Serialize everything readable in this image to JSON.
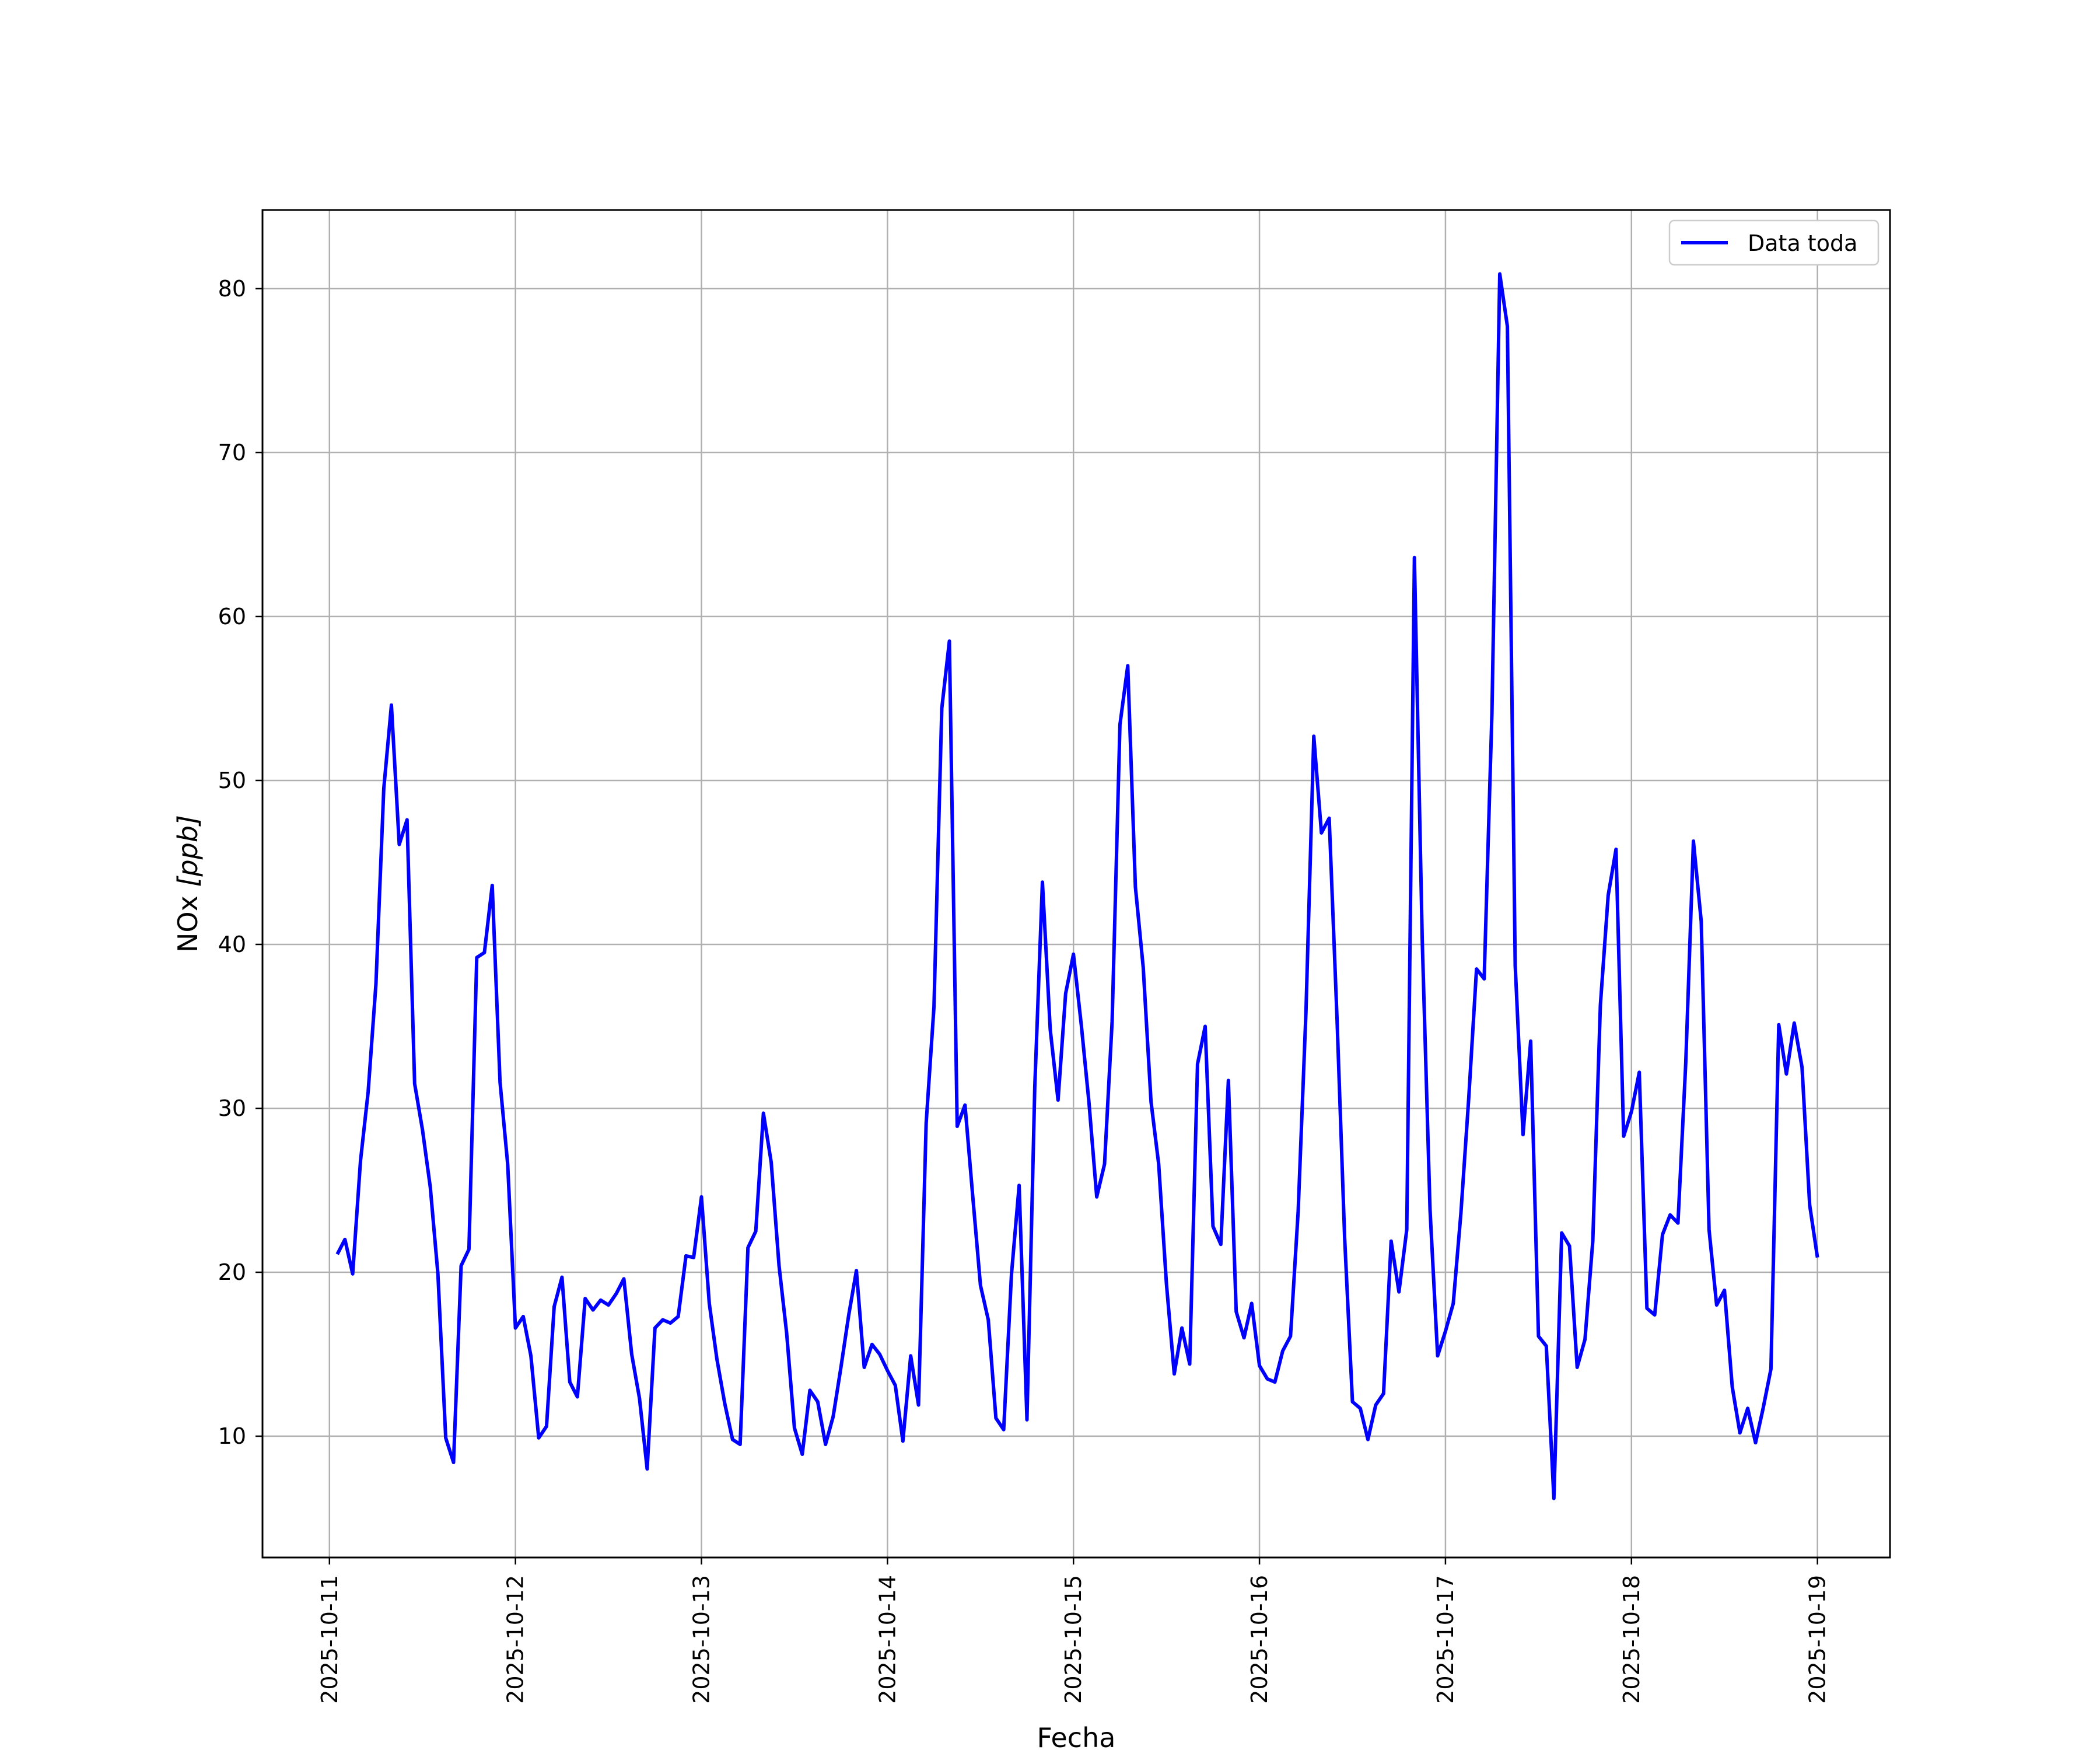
{
  "chart_data": {
    "type": "line",
    "xlabel": "Fecha",
    "ylabel_main": "NOx ",
    "ylabel_unit": "[ppb]",
    "ylabel_unit_italic": "ppb",
    "x_tick_labels": [
      "2025-10-11",
      "2025-10-12",
      "2025-10-13",
      "2025-10-14",
      "2025-10-15",
      "2025-10-16",
      "2025-10-17",
      "2025-10-18",
      "2025-10-19"
    ],
    "y_ticks": [
      10,
      20,
      30,
      40,
      50,
      60,
      70,
      80
    ],
    "xlim_days": [
      -0.36,
      8.39
    ],
    "ylim": [
      2.6,
      84.8
    ],
    "x_start_date": "2025-10-11",
    "grid": true,
    "legend_position": "upper right",
    "series": [
      {
        "name": "Data toda",
        "color": "#0000ff",
        "x_days": [
          0.042,
          0.083,
          0.125,
          0.167,
          0.208,
          0.25,
          0.292,
          0.333,
          0.375,
          0.417,
          0.458,
          0.5,
          0.542,
          0.583,
          0.625,
          0.667,
          0.708,
          0.75,
          0.792,
          0.833,
          0.875,
          0.917,
          0.958,
          1.0,
          1.042,
          1.083,
          1.125,
          1.167,
          1.208,
          1.25,
          1.292,
          1.333,
          1.375,
          1.417,
          1.458,
          1.5,
          1.542,
          1.583,
          1.625,
          1.667,
          1.708,
          1.75,
          1.792,
          1.833,
          1.875,
          1.917,
          1.958,
          2.0,
          2.042,
          2.083,
          2.125,
          2.167,
          2.208,
          2.25,
          2.292,
          2.333,
          2.375,
          2.417,
          2.458,
          2.5,
          2.542,
          2.583,
          2.625,
          2.667,
          2.708,
          2.75,
          2.792,
          2.833,
          2.875,
          2.917,
          2.958,
          3.0,
          3.042,
          3.083,
          3.125,
          3.167,
          3.208,
          3.25,
          3.292,
          3.333,
          3.375,
          3.417,
          3.458,
          3.5,
          3.542,
          3.583,
          3.625,
          3.667,
          3.708,
          3.75,
          3.792,
          3.833,
          3.875,
          3.917,
          3.958,
          4.0,
          4.042,
          4.083,
          4.125,
          4.167,
          4.208,
          4.25,
          4.292,
          4.333,
          4.375,
          4.417,
          4.458,
          4.5,
          4.542,
          4.583,
          4.625,
          4.667,
          4.708,
          4.75,
          4.792,
          4.833,
          4.875,
          4.917,
          4.958,
          5.0,
          5.042,
          5.083,
          5.125,
          5.167,
          5.208,
          5.25,
          5.292,
          5.333,
          5.375,
          5.417,
          5.458,
          5.5,
          5.542,
          5.583,
          5.625,
          5.667,
          5.708,
          5.75,
          5.792,
          5.833,
          5.875,
          5.917,
          5.958,
          6.0,
          6.042,
          6.083,
          6.125,
          6.167,
          6.208,
          6.25,
          6.292,
          6.333,
          6.375,
          6.417,
          6.458,
          6.5,
          6.542,
          6.583,
          6.625,
          6.667,
          6.708,
          6.75,
          6.792,
          6.833,
          6.875,
          6.917,
          6.958,
          7.0,
          7.042,
          7.083,
          7.125,
          7.167,
          7.208,
          7.25,
          7.292,
          7.333,
          7.375,
          7.417,
          7.458,
          7.5,
          7.542,
          7.583,
          7.625,
          7.667,
          7.708,
          7.75,
          7.792,
          7.833,
          7.875,
          7.917,
          7.958,
          8.0
        ],
        "y": [
          21.1,
          22.0,
          19.9,
          26.8,
          31.0,
          37.6,
          49.5,
          54.6,
          46.1,
          47.6,
          31.5,
          28.7,
          25.2,
          19.9,
          9.9,
          8.4,
          20.4,
          21.4,
          39.2,
          39.5,
          43.6,
          31.6,
          26.6,
          16.6,
          17.3,
          14.9,
          9.9,
          10.6,
          17.9,
          19.7,
          13.3,
          12.4,
          18.4,
          17.7,
          18.3,
          18.0,
          18.7,
          19.6,
          15.0,
          12.3,
          8.0,
          16.6,
          17.1,
          16.9,
          17.3,
          21.0,
          20.9,
          24.6,
          18.1,
          14.7,
          12.0,
          9.8,
          9.5,
          21.5,
          22.5,
          29.7,
          26.7,
          20.4,
          16.3,
          10.5,
          8.9,
          12.8,
          12.1,
          9.5,
          11.2,
          14.2,
          17.4,
          20.1,
          14.2,
          15.6,
          15.0,
          14.0,
          13.1,
          9.7,
          14.9,
          11.9,
          29.1,
          36.2,
          54.4,
          58.5,
          28.9,
          30.2,
          24.7,
          19.2,
          17.1,
          11.1,
          10.4,
          19.9,
          25.3,
          11.0,
          31.3,
          43.8,
          34.8,
          30.5,
          37.0,
          39.4,
          35.1,
          30.4,
          24.6,
          26.6,
          35.3,
          53.4,
          57.0,
          43.5,
          38.6,
          30.4,
          26.6,
          19.3,
          13.8,
          16.6,
          14.4,
          32.7,
          35.0,
          22.8,
          21.7,
          31.7,
          17.6,
          16.0,
          18.1,
          14.3,
          13.5,
          13.3,
          15.2,
          16.1,
          23.7,
          35.9,
          52.7,
          46.8,
          47.7,
          35.5,
          22.1,
          12.1,
          11.7,
          9.8,
          11.9,
          12.6,
          21.9,
          18.8,
          22.6,
          63.6,
          40.3,
          23.8,
          14.9,
          16.4,
          18.1,
          23.6,
          30.6,
          38.5,
          37.9,
          54.1,
          80.9,
          77.7,
          38.7,
          28.4,
          34.1,
          16.1,
          15.5,
          6.2,
          22.4,
          21.6,
          14.2,
          15.9,
          21.9,
          36.3,
          43.0,
          45.8,
          28.3,
          29.8,
          32.2,
          17.8,
          17.4,
          22.3,
          23.5,
          23.0,
          32.8,
          46.3,
          41.4,
          22.6,
          18.0,
          18.9,
          13.0,
          10.2,
          11.7,
          9.6,
          11.7,
          14.1,
          35.1,
          32.1,
          35.2,
          32.5,
          24.1,
          20.9
        ]
      }
    ]
  }
}
